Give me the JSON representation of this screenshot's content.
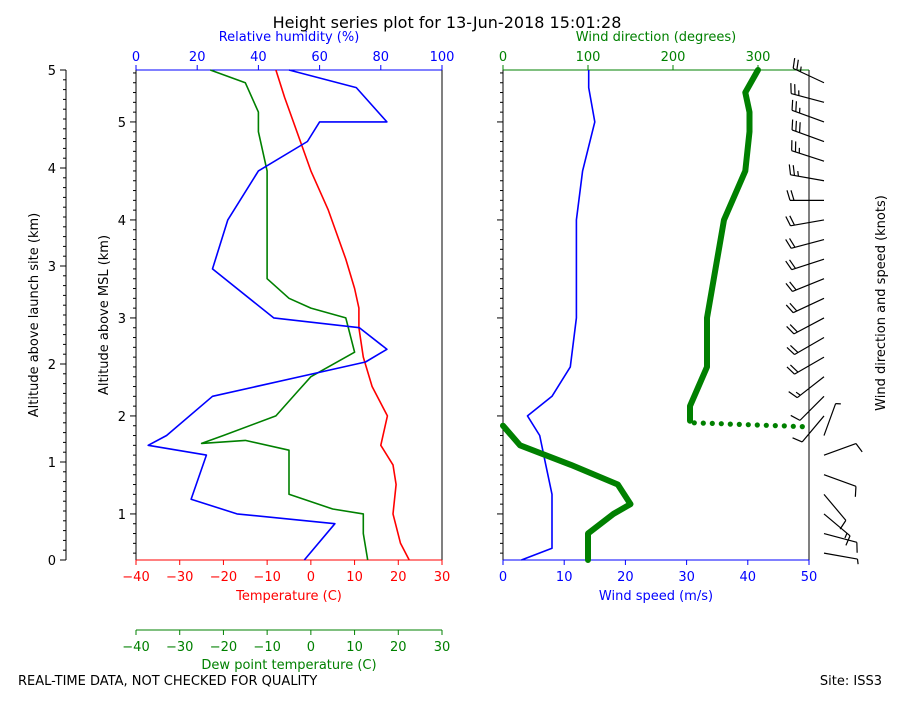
{
  "title": "Height series plot for 13-Jun-2018 15:01:28",
  "footer": {
    "left": "REAL-TIME DATA, NOT CHECKED FOR QUALITY",
    "right": "Site: ISS3"
  },
  "colors": {
    "temperature": "#ff0000",
    "dewpoint": "#008000",
    "humidity": "#0000ff",
    "wind_speed": "#0000ff",
    "wind_dir": "#008000",
    "barbs": "#000000"
  },
  "chart_data": [
    {
      "type": "line",
      "title": "Thermodynamic profile",
      "ylabel_launch": "Altitude above launch site (km)",
      "ylabel_msl": "Altitude above MSL (km)",
      "y_launch_ticks": [
        0,
        1,
        2,
        3,
        4,
        5
      ],
      "y_msl_ticks": [
        1,
        2,
        3,
        4,
        5
      ],
      "ylim_msl": [
        0.53,
        5.53
      ],
      "axes": {
        "temperature": {
          "label": "Temperature (C)",
          "range": [
            -40,
            30
          ],
          "ticks": [
            "−40",
            "−30",
            "−20",
            "−10",
            "0",
            "10",
            "20",
            "30"
          ]
        },
        "dewpoint": {
          "label": "Dew point temperature (C)",
          "range": [
            -40,
            30
          ],
          "ticks": [
            "−40",
            "−30",
            "−20",
            "−10",
            "0",
            "10",
            "20",
            "30"
          ]
        },
        "humidity": {
          "label": "Relative humidity (%)",
          "range": [
            0,
            100
          ],
          "ticks": [
            "0",
            "20",
            "40",
            "60",
            "80",
            "100"
          ]
        }
      },
      "series": [
        {
          "name": "Temperature",
          "axis": "temperature",
          "points": [
            [
              22.5,
              0.53
            ],
            [
              20.5,
              0.7
            ],
            [
              18.8,
              1.0
            ],
            [
              19.5,
              1.3
            ],
            [
              18.8,
              1.5
            ],
            [
              16,
              1.7
            ],
            [
              17,
              1.9
            ],
            [
              17.5,
              2.0
            ],
            [
              14,
              2.3
            ],
            [
              12,
              2.6
            ],
            [
              11,
              2.9
            ],
            [
              11,
              3.1
            ],
            [
              10,
              3.3
            ],
            [
              8,
              3.6
            ],
            [
              4,
              4.1
            ],
            [
              0,
              4.5
            ],
            [
              -4,
              5.0
            ],
            [
              -6,
              5.25
            ],
            [
              -8,
              5.53
            ]
          ]
        },
        {
          "name": "Dew point",
          "axis": "dewpoint",
          "points": [
            [
              13,
              0.53
            ],
            [
              12,
              0.8
            ],
            [
              12,
              1.0
            ],
            [
              5,
              1.05
            ],
            [
              -5,
              1.2
            ],
            [
              -5,
              1.6
            ],
            [
              -5,
              1.65
            ],
            [
              -15,
              1.75
            ],
            [
              -25,
              1.72
            ],
            [
              -20,
              1.8
            ],
            [
              -8,
              2.0
            ],
            [
              -3,
              2.25
            ],
            [
              0,
              2.4
            ],
            [
              10,
              2.65
            ],
            [
              8,
              3.0
            ],
            [
              0,
              3.1
            ],
            [
              -5,
              3.2
            ],
            [
              -10,
              3.4
            ],
            [
              -10,
              4.0
            ],
            [
              -10,
              4.5
            ],
            [
              -12,
              4.9
            ],
            [
              -12,
              5.1
            ],
            [
              -15,
              5.4
            ],
            [
              -23,
              5.53
            ]
          ]
        },
        {
          "name": "Relative humidity",
          "axis": "humidity",
          "points": [
            [
              55,
              0.53
            ],
            [
              65,
              0.9
            ],
            [
              33,
              1.0
            ],
            [
              18,
              1.15
            ],
            [
              23,
              1.6
            ],
            [
              4,
              1.7
            ],
            [
              10,
              1.8
            ],
            [
              25,
              2.2
            ],
            [
              75,
              2.55
            ],
            [
              82,
              2.68
            ],
            [
              73,
              2.9
            ],
            [
              45,
              3.0
            ],
            [
              25,
              3.5
            ],
            [
              30,
              4.0
            ],
            [
              40,
              4.5
            ],
            [
              56,
              4.8
            ],
            [
              60,
              5.0
            ],
            [
              82,
              5.0
            ],
            [
              72,
              5.35
            ],
            [
              50,
              5.53
            ]
          ]
        }
      ]
    },
    {
      "type": "line",
      "title": "Wind profile",
      "axes": {
        "wind_speed": {
          "label": "Wind speed (m/s)",
          "range": [
            0,
            50
          ],
          "ticks": [
            "0",
            "10",
            "20",
            "30",
            "40",
            "50"
          ]
        },
        "wind_direction": {
          "label": "Wind direction (degrees)",
          "range": [
            0,
            360
          ],
          "ticks": [
            "0",
            "100",
            "200",
            "300"
          ]
        },
        "barbs_label": "Wind direction and speed (knots)"
      },
      "series": [
        {
          "name": "Wind speed",
          "axis": "wind_speed",
          "points": [
            [
              3,
              0.53
            ],
            [
              8,
              0.65
            ],
            [
              8,
              1.2
            ],
            [
              7,
              1.5
            ],
            [
              6,
              1.8
            ],
            [
              4,
              2.0
            ],
            [
              8,
              2.2
            ],
            [
              11,
              2.5
            ],
            [
              12,
              3.0
            ],
            [
              12,
              3.5
            ],
            [
              12,
              4.0
            ],
            [
              13,
              4.5
            ],
            [
              15,
              5.0
            ],
            [
              14,
              5.35
            ],
            [
              14,
              5.53
            ]
          ]
        },
        {
          "name": "Wind direction",
          "axis": "wind_direction",
          "points": [
            [
              100,
              0.53
            ],
            [
              100,
              0.8
            ],
            [
              130,
              1.0
            ],
            [
              150,
              1.1
            ],
            [
              135,
              1.3
            ],
            [
              80,
              1.5
            ],
            [
              20,
              1.7
            ],
            [
              0,
              1.9
            ],
            [
              220,
              1.95
            ],
            [
              220,
              2.1
            ],
            [
              230,
              2.3
            ],
            [
              240,
              2.5
            ],
            [
              240,
              3.0
            ],
            [
              250,
              3.5
            ],
            [
              260,
              4.0
            ],
            [
              285,
              4.5
            ],
            [
              290,
              4.9
            ],
            [
              290,
              5.1
            ],
            [
              285,
              5.3
            ],
            [
              300,
              5.53
            ]
          ]
        }
      ],
      "barbs": [
        {
          "alt": 0.6,
          "dir": 100,
          "speed_kt": 6
        },
        {
          "alt": 0.8,
          "dir": 105,
          "speed_kt": 12
        },
        {
          "alt": 1.0,
          "dir": 130,
          "speed_kt": 16
        },
        {
          "alt": 1.2,
          "dir": 140,
          "speed_kt": 14
        },
        {
          "alt": 1.4,
          "dir": 110,
          "speed_kt": 12
        },
        {
          "alt": 1.6,
          "dir": 70,
          "speed_kt": 10
        },
        {
          "alt": 1.8,
          "dir": 20,
          "speed_kt": 6
        },
        {
          "alt": 2.0,
          "dir": 220,
          "speed_kt": 10
        },
        {
          "alt": 2.2,
          "dir": 225,
          "speed_kt": 14
        },
        {
          "alt": 2.4,
          "dir": 232,
          "speed_kt": 18
        },
        {
          "alt": 2.6,
          "dir": 240,
          "speed_kt": 22
        },
        {
          "alt": 2.8,
          "dir": 240,
          "speed_kt": 22
        },
        {
          "alt": 3.0,
          "dir": 242,
          "speed_kt": 22
        },
        {
          "alt": 3.2,
          "dir": 245,
          "speed_kt": 22
        },
        {
          "alt": 3.4,
          "dir": 248,
          "speed_kt": 24
        },
        {
          "alt": 3.6,
          "dir": 252,
          "speed_kt": 24
        },
        {
          "alt": 3.8,
          "dir": 255,
          "speed_kt": 24
        },
        {
          "alt": 4.0,
          "dir": 260,
          "speed_kt": 24
        },
        {
          "alt": 4.2,
          "dir": 270,
          "speed_kt": 24
        },
        {
          "alt": 4.4,
          "dir": 280,
          "speed_kt": 26
        },
        {
          "alt": 4.6,
          "dir": 288,
          "speed_kt": 28
        },
        {
          "alt": 4.8,
          "dir": 290,
          "speed_kt": 30
        },
        {
          "alt": 5.0,
          "dir": 290,
          "speed_kt": 28
        },
        {
          "alt": 5.2,
          "dir": 285,
          "speed_kt": 28
        },
        {
          "alt": 5.4,
          "dir": 295,
          "speed_kt": 28
        }
      ]
    }
  ]
}
